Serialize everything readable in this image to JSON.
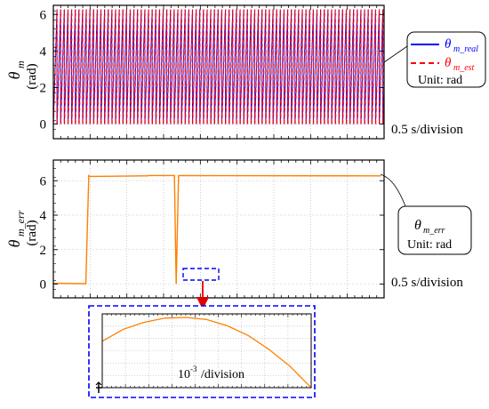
{
  "chart_data": [
    {
      "type": "line",
      "ylabel_symbol": "θ",
      "ylabel_sub": "m",
      "ylabel_unit": "(rad)",
      "ylim": [
        -0.8,
        6.5
      ],
      "yticks": [
        0,
        2,
        4,
        6
      ],
      "x_division_text": "0.5 s/division",
      "period_s": 0.062,
      "x_range_s": [
        0,
        5.6
      ],
      "y_wave_range": [
        0,
        6.28
      ],
      "grid": true,
      "series": [
        {
          "name": "θm_real",
          "symbol": "θ",
          "sub": "m_real",
          "color": "#0000ff",
          "dash": "solid"
        },
        {
          "name": "θm_est",
          "symbol": "θ",
          "sub": "m_est",
          "color": "#ff0000",
          "dash": "dashed"
        }
      ],
      "legend_position": "right",
      "unit_note": "Unit: rad"
    },
    {
      "type": "line",
      "ylabel_symbol": "θ",
      "ylabel_sub": "m_err",
      "ylabel_unit": "(rad)",
      "ylim": [
        -0.8,
        7.2
      ],
      "yticks": [
        0,
        2,
        4,
        6
      ],
      "x_division_text": "0.5 s/division",
      "grid": true,
      "series": [
        {
          "name": "θm_err",
          "color": "#ff8000",
          "x": [
            0,
            0.55,
            0.6,
            0.62,
            1.5,
            1.6,
            1.62,
            2.05,
            2.08,
            2.12,
            5.55
          ],
          "y": [
            0.05,
            0.02,
            6.3,
            6.25,
            6.28,
            6.28,
            6.3,
            6.3,
            0.0,
            6.3,
            6.28
          ]
        }
      ],
      "callout_symbol": "θ",
      "callout_sub": "m_err",
      "unit_note": "Unit: rad"
    },
    {
      "type": "line",
      "division_text": "/division",
      "division_base": "10",
      "division_exp": "-3",
      "grid": true,
      "series": [
        {
          "name": "θm_err_zoom",
          "color": "#ff8000",
          "x": [
            0,
            0.1,
            0.2,
            0.3,
            0.4,
            0.5,
            0.6,
            0.7,
            0.8,
            0.9,
            1.0
          ],
          "y": [
            0.66,
            0.83,
            0.93,
            0.99,
            1.0,
            0.97,
            0.88,
            0.74,
            0.54,
            0.3,
            0.0
          ]
        }
      ]
    }
  ]
}
